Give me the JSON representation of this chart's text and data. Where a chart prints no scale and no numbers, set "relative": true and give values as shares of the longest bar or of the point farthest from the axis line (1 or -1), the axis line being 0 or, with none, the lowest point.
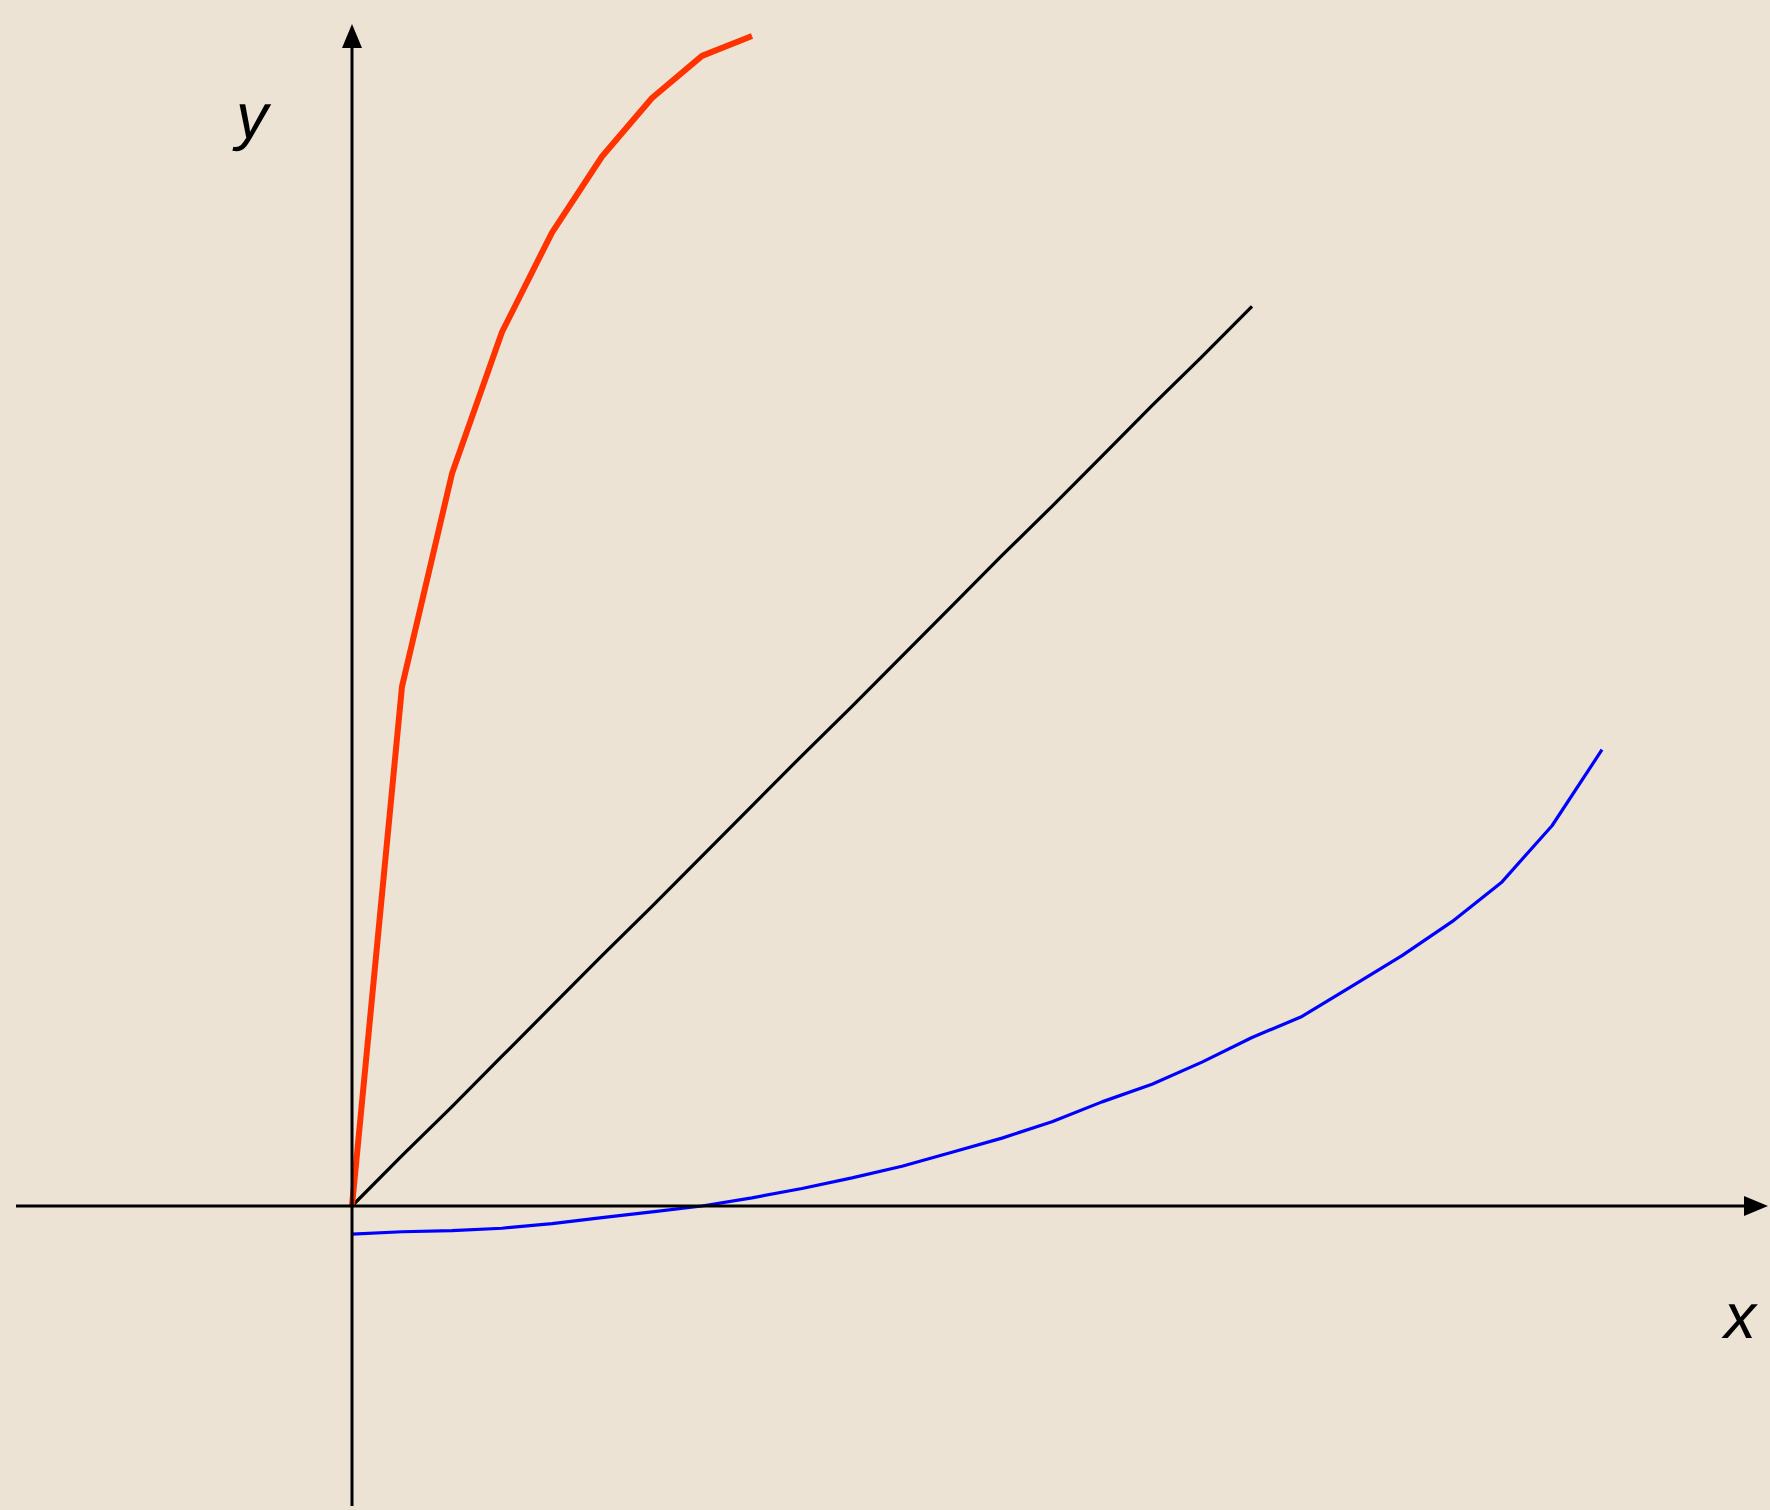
{
  "chart_data": {
    "type": "line",
    "relative": true,
    "xlabel": "x",
    "ylabel": "y",
    "legend": false,
    "marker": "none",
    "line_style": "solid",
    "categories": [
      null,
      null,
      null,
      null,
      null,
      null,
      null,
      null,
      null,
      null,
      null,
      null,
      null,
      null,
      null,
      null,
      null,
      null,
      null,
      null,
      null,
      null,
      null,
      null,
      null,
      null
    ],
    "series": [
      {
        "color": "#ff3300",
        "values": [
          0,
          0.444,
          0.626,
          0.747,
          0.832,
          0.897,
          0.947,
          0.983,
          1,
          null,
          null,
          null,
          null,
          null,
          null,
          null,
          null,
          null,
          null,
          null,
          null,
          null,
          null,
          null,
          null,
          null
        ]
      },
      {
        "color": "#000000",
        "values": [
          0,
          0.043,
          0.085,
          0.128,
          0.171,
          0.214,
          0.256,
          0.299,
          0.342,
          0.385,
          0.427,
          0.47,
          0.513,
          0.556,
          0.598,
          0.641,
          0.684,
          0.726,
          0.769,
          null,
          null,
          null,
          null,
          null,
          null,
          null
        ]
      },
      {
        "color": "#0000ff",
        "values": [
          -0.024,
          -0.022,
          -0.021,
          -0.019,
          -0.015,
          -0.01,
          -0.005,
          0,
          0.007,
          0.015,
          0.024,
          0.034,
          0.046,
          0.058,
          0.072,
          0.089,
          0.104,
          0.123,
          0.144,
          0.162,
          0.188,
          0.214,
          0.243,
          0.277,
          0.325,
          0.39
        ]
      }
    ]
  }
}
